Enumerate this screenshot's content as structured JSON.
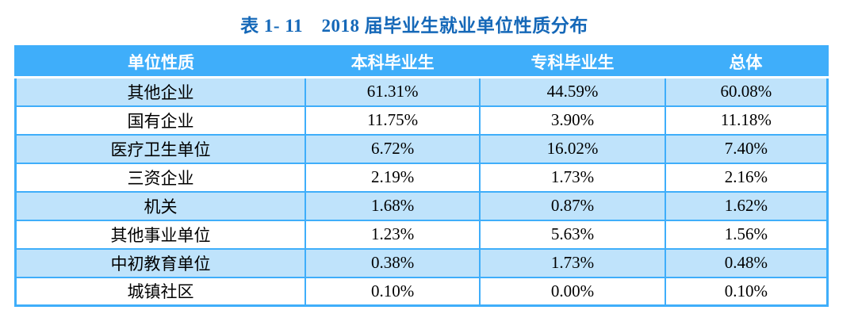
{
  "chart_data": {
    "type": "table",
    "title": "表 1- 11　2018 届毕业生就业单位性质分布",
    "columns": [
      "单位性质",
      "本科毕业生",
      "专科毕业生",
      "总体"
    ],
    "rows": [
      [
        "其他企业",
        "61.31%",
        "44.59%",
        "60.08%"
      ],
      [
        "国有企业",
        "11.75%",
        "3.90%",
        "11.18%"
      ],
      [
        "医疗卫生单位",
        "6.72%",
        "16.02%",
        "7.40%"
      ],
      [
        "三资企业",
        "2.19%",
        "1.73%",
        "2.16%"
      ],
      [
        "机关",
        "1.68%",
        "0.87%",
        "1.62%"
      ],
      [
        "其他事业单位",
        "1.23%",
        "5.63%",
        "1.56%"
      ],
      [
        "中初教育单位",
        "0.38%",
        "1.73%",
        "0.48%"
      ],
      [
        "城镇社区",
        "0.10%",
        "0.00%",
        "0.10%"
      ]
    ],
    "layout": {
      "header_row_shaded": true,
      "zebra_striping": "odd-rows-light-blue",
      "grid": true
    }
  },
  "colors": {
    "header_bg": "#3FAEFA",
    "grid": "#3FAEFA",
    "row_alt_bg": "#BFE3FB",
    "row_bg": "#FFFFFF",
    "title_text": "#1568B8",
    "header_text": "#FFFFFF",
    "cell_text": "#000000"
  }
}
